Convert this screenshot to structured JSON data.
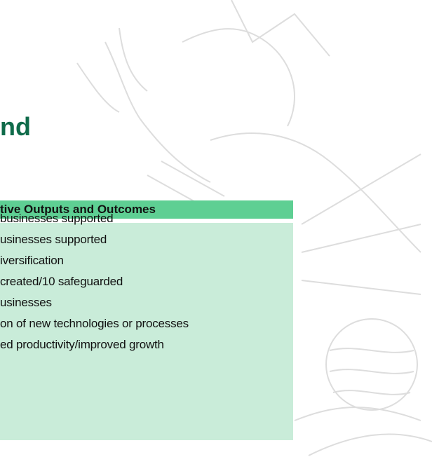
{
  "header": {
    "title": "nd"
  },
  "table": {
    "header": "tive Outputs and Outcomes",
    "rows": [
      "businesses supported",
      "usinesses supported",
      "iversification",
      "created/10 safeguarded",
      "usinesses",
      "on of new technologies or processes",
      "ed productivity/improved growth"
    ]
  }
}
